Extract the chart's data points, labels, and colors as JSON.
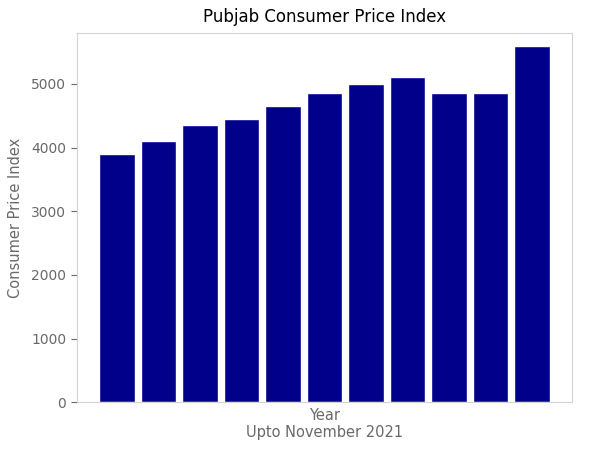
{
  "title": "Pubjab Consumer Price Index",
  "xlabel": "Year",
  "xlabel2": "Upto November 2021",
  "ylabel": "Consumer Price Index",
  "bar_color": "#00008B",
  "values": [
    3900,
    4100,
    4350,
    4450,
    4650,
    4850,
    5000,
    5100,
    4850,
    4850,
    5600
  ],
  "ylim": [
    0,
    5800
  ],
  "yticks": [
    0,
    1000,
    2000,
    3000,
    4000,
    5000
  ],
  "background_color": "#ffffff",
  "figsize": [
    5.9,
    4.68
  ],
  "dpi": 100
}
